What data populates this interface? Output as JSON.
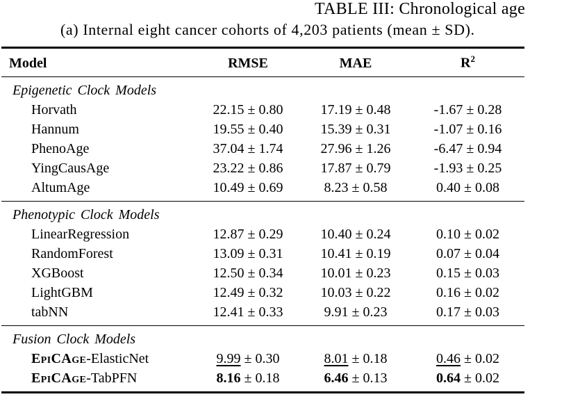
{
  "title": "TABLE III: Chronological age",
  "subtitle": "(a) Internal eight cancer cohorts of 4,203 patients (mean ± SD).",
  "table": {
    "header": {
      "model": "Model",
      "rmse": "RMSE",
      "mae": "MAE",
      "r2_base": "R",
      "r2_sup": "2"
    },
    "sections": [
      {
        "label": "Epigenetic Clock Models",
        "rows": [
          {
            "name": "Horvath",
            "values": [
              [
                "22.15",
                "0.80",
                ""
              ],
              [
                "17.19",
                "0.48",
                ""
              ],
              [
                "-1.67",
                "0.28",
                ""
              ]
            ]
          },
          {
            "name": "Hannum",
            "values": [
              [
                "19.55",
                "0.40",
                ""
              ],
              [
                "15.39",
                "0.31",
                ""
              ],
              [
                "-1.07",
                "0.16",
                ""
              ]
            ]
          },
          {
            "name": "PhenoAge",
            "values": [
              [
                "37.04",
                "1.74",
                ""
              ],
              [
                "27.96",
                "1.26",
                ""
              ],
              [
                "-6.47",
                "0.94",
                ""
              ]
            ]
          },
          {
            "name": "YingCausAge",
            "values": [
              [
                "23.22",
                "0.86",
                ""
              ],
              [
                "17.87",
                "0.79",
                ""
              ],
              [
                "-1.93",
                "0.25",
                ""
              ]
            ]
          },
          {
            "name": "AltumAge",
            "values": [
              [
                "10.49",
                "0.69",
                ""
              ],
              [
                "8.23",
                "0.58",
                ""
              ],
              [
                "0.40",
                "0.08",
                ""
              ]
            ]
          }
        ]
      },
      {
        "label": "Phenotypic Clock Models",
        "rows": [
          {
            "name": "LinearRegression",
            "values": [
              [
                "12.87",
                "0.29",
                ""
              ],
              [
                "10.40",
                "0.24",
                ""
              ],
              [
                "0.10",
                "0.02",
                ""
              ]
            ]
          },
          {
            "name": "RandomForest",
            "values": [
              [
                "13.09",
                "0.31",
                ""
              ],
              [
                "10.41",
                "0.19",
                ""
              ],
              [
                "0.07",
                "0.04",
                ""
              ]
            ]
          },
          {
            "name": "XGBoost",
            "values": [
              [
                "12.50",
                "0.34",
                ""
              ],
              [
                "10.01",
                "0.23",
                ""
              ],
              [
                "0.15",
                "0.03",
                ""
              ]
            ]
          },
          {
            "name": "LightGBM",
            "values": [
              [
                "12.49",
                "0.32",
                ""
              ],
              [
                "10.03",
                "0.22",
                ""
              ],
              [
                "0.16",
                "0.02",
                ""
              ]
            ]
          },
          {
            "name": "tabNN",
            "values": [
              [
                "12.41",
                "0.33",
                ""
              ],
              [
                "9.91",
                "0.23",
                ""
              ],
              [
                "0.17",
                "0.03",
                ""
              ]
            ]
          }
        ]
      },
      {
        "label": "Fusion Clock Models",
        "rows": [
          {
            "name_sc": "EpiCAge",
            "name_rest": "-ElasticNet",
            "values": [
              [
                "9.99",
                "0.30",
                "u"
              ],
              [
                "8.01",
                "0.18",
                "u"
              ],
              [
                "0.46",
                "0.02",
                "u"
              ]
            ]
          },
          {
            "name_sc": "EpiCAge",
            "name_rest": "-TabPFN",
            "values": [
              [
                "8.16",
                "0.18",
                "b"
              ],
              [
                "6.46",
                "0.13",
                "b"
              ],
              [
                "0.64",
                "0.02",
                "b"
              ]
            ]
          }
        ]
      }
    ]
  }
}
